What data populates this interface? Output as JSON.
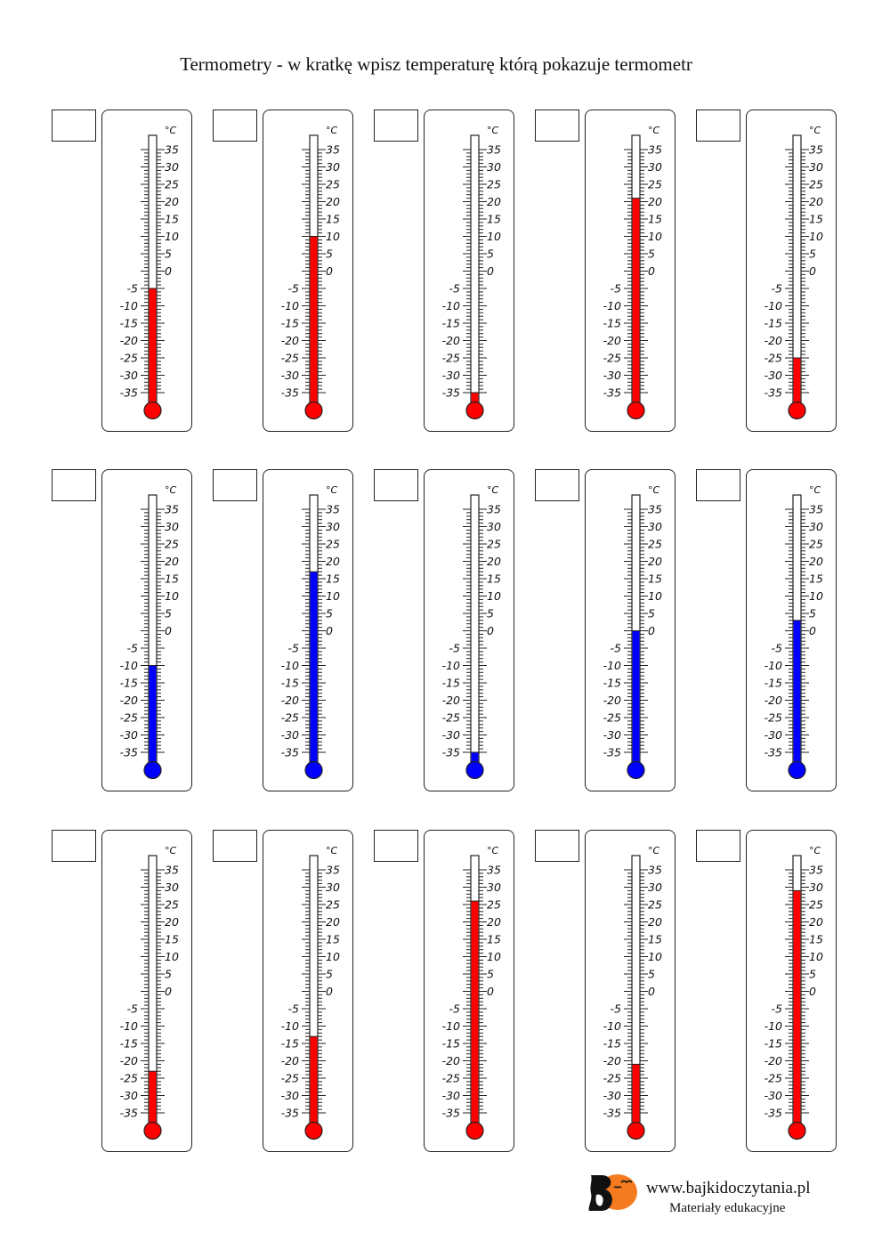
{
  "title": "Termometry - w kratkę wpisz temperaturę którą pokazuje termometr",
  "scale": {
    "unit": "°C",
    "min": -35,
    "max": 35,
    "labels": [
      "35",
      "30",
      "25",
      "20",
      "15",
      "10",
      "5",
      "0",
      "-5",
      "-10",
      "-15",
      "-20",
      "-25",
      "-30",
      "-35"
    ]
  },
  "colors": {
    "red": "#ff0000",
    "blue": "#0000ff"
  },
  "thermometers": [
    {
      "color": "red",
      "value": -5,
      "answer": ""
    },
    {
      "color": "red",
      "value": 10,
      "answer": ""
    },
    {
      "color": "red",
      "value": -35,
      "answer": ""
    },
    {
      "color": "red",
      "value": 21,
      "answer": ""
    },
    {
      "color": "red",
      "value": -25,
      "answer": ""
    },
    {
      "color": "blue",
      "value": -10,
      "answer": ""
    },
    {
      "color": "blue",
      "value": 17,
      "answer": ""
    },
    {
      "color": "blue",
      "value": -35,
      "answer": ""
    },
    {
      "color": "blue",
      "value": 0,
      "answer": ""
    },
    {
      "color": "blue",
      "value": 3,
      "answer": ""
    },
    {
      "color": "red",
      "value": -23,
      "answer": ""
    },
    {
      "color": "red",
      "value": -13,
      "answer": ""
    },
    {
      "color": "red",
      "value": 26,
      "answer": ""
    },
    {
      "color": "red",
      "value": -21,
      "answer": ""
    },
    {
      "color": "red",
      "value": 29,
      "answer": ""
    }
  ],
  "footer": {
    "site": "www.bajkidoczytania.pl",
    "tagline": "Materiały edukacyjne",
    "logo": "bajkidoczytania-logo"
  }
}
